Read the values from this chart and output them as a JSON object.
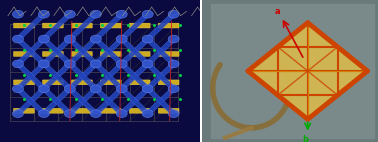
{
  "fig_width": 3.78,
  "fig_height": 1.42,
  "dpi": 100,
  "bg_color": "#ffffff",
  "left_bg": "#0a0a40",
  "right_bg": "#6a7a7a",
  "blue_tube_color": "#2244bb",
  "yellow_bar_color": "#ccaa22",
  "crystal_orange": "#cc4400",
  "crystal_yellow": "#ddcc66",
  "axis_a_color": "#cc0000",
  "axis_b_color": "#00aa00",
  "axis_c_color": "#0000cc"
}
